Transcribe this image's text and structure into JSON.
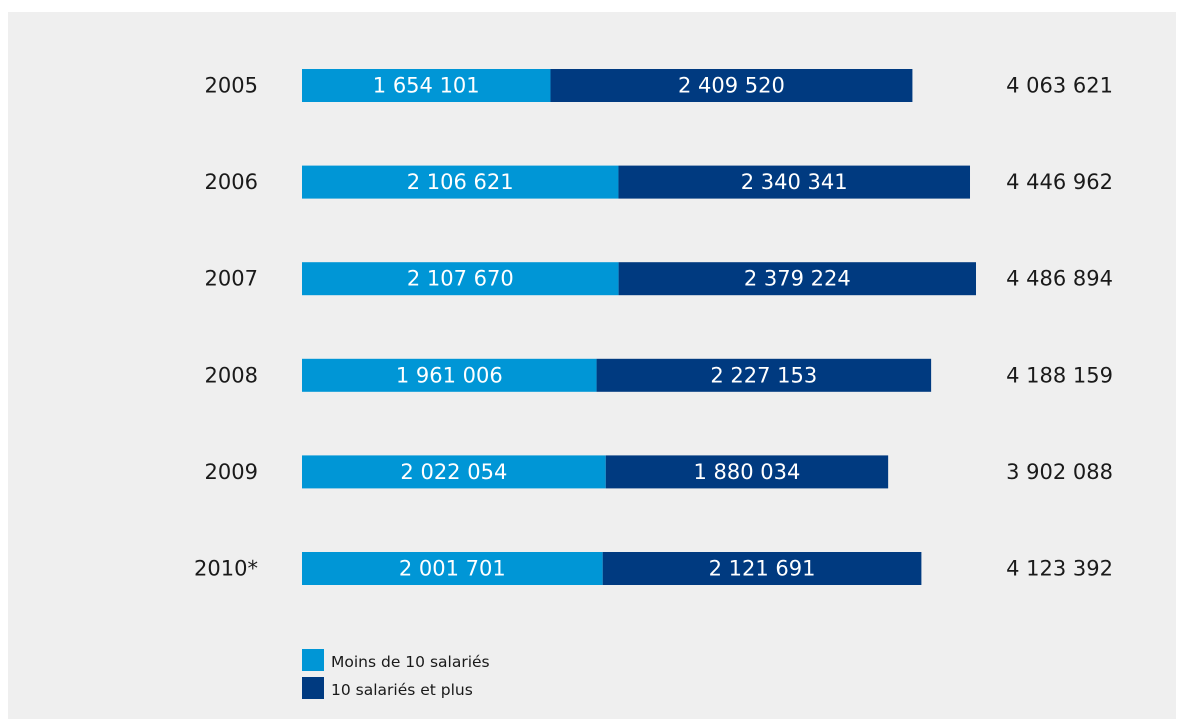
{
  "chart_data": {
    "type": "bar",
    "orientation": "horizontal",
    "stacked": true,
    "categories": [
      "2005",
      "2006",
      "2007",
      "2008",
      "2009",
      "2010*"
    ],
    "series": [
      {
        "name": "Moins de 10 salariés",
        "color": "#0096d6",
        "values": [
          1654101,
          2106621,
          2107670,
          1961006,
          2022054,
          2001701
        ],
        "labels": [
          "1 654 101",
          "2 106 621",
          "2 107 670",
          "1 961 006",
          "2 022 054",
          "2 001 701"
        ]
      },
      {
        "name": "10 salariés et plus",
        "color": "#003a80",
        "values": [
          2409520,
          2340341,
          2379224,
          2227153,
          1880034,
          2121691
        ],
        "labels": [
          "2 409 520",
          "2 340 341",
          "2 379 224",
          "2 227 153",
          "1 880 034",
          "2 121 691"
        ]
      }
    ],
    "totals": [
      4063621,
      4446962,
      4486894,
      4188159,
      3902088,
      4123392
    ],
    "total_labels": [
      "4 063 621",
      "4 446 962",
      "4 486 894",
      "4 188 159",
      "3 902 088",
      "4 123 392"
    ],
    "xlim": [
      0,
      4486894
    ],
    "legend_position": "bottom-left",
    "grid": false
  }
}
